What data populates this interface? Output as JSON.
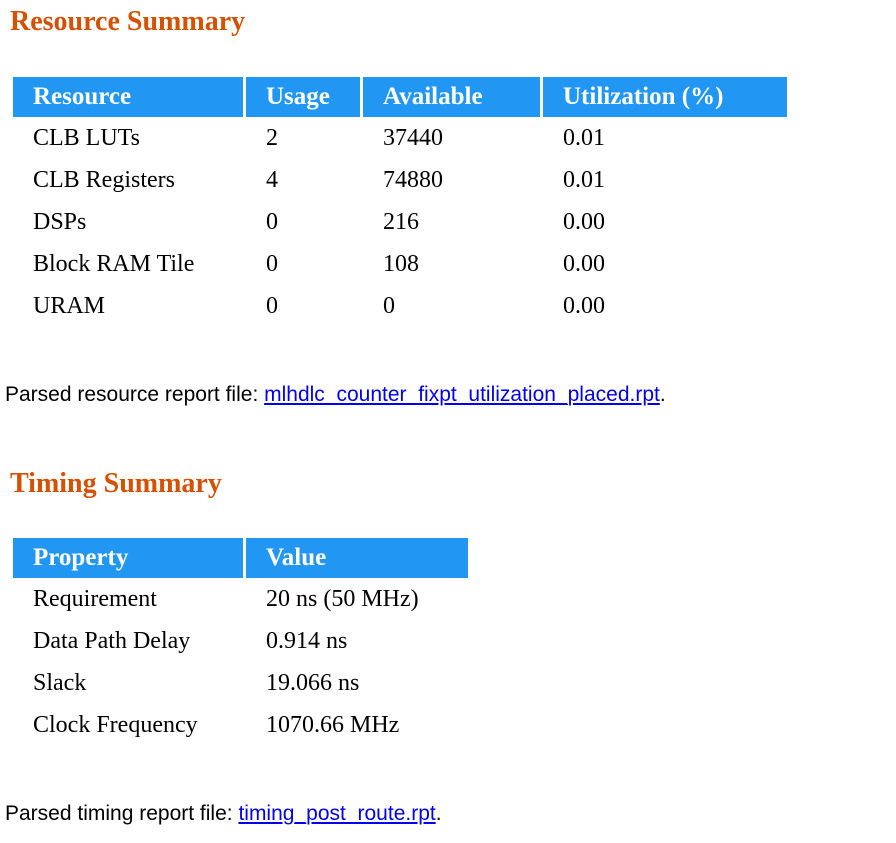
{
  "colors": {
    "section_heading": "#D55000",
    "table_header_bg": "#2196F3",
    "table_header_text": "#FFFFFF",
    "link": "#0000EE",
    "body_text": "#000000"
  },
  "resource_summary": {
    "title": "Resource Summary",
    "table": {
      "headers": [
        "Resource",
        "Usage",
        "Available",
        "Utilization (%)"
      ],
      "rows": [
        [
          "CLB LUTs",
          "2",
          "37440",
          "0.01"
        ],
        [
          "CLB Registers",
          "4",
          "74880",
          "0.01"
        ],
        [
          "DSPs",
          "0",
          "216",
          "0.00"
        ],
        [
          "Block RAM Tile",
          "0",
          "108",
          "0.00"
        ],
        [
          "URAM",
          "0",
          "0",
          "0.00"
        ]
      ]
    },
    "report_line": {
      "prefix": "Parsed resource report file: ",
      "link_text": "mlhdlc_counter_fixpt_utilization_placed.rpt",
      "suffix": "."
    }
  },
  "timing_summary": {
    "title": "Timing Summary",
    "table": {
      "headers": [
        "Property",
        "Value"
      ],
      "rows": [
        [
          "Requirement",
          "20 ns (50 MHz)"
        ],
        [
          "Data Path Delay",
          "0.914 ns"
        ],
        [
          "Slack",
          "19.066 ns"
        ],
        [
          "Clock Frequency",
          "1070.66 MHz"
        ]
      ]
    },
    "report_line": {
      "prefix": "Parsed timing report file: ",
      "link_text": "timing_post_route.rpt",
      "suffix": "."
    }
  }
}
